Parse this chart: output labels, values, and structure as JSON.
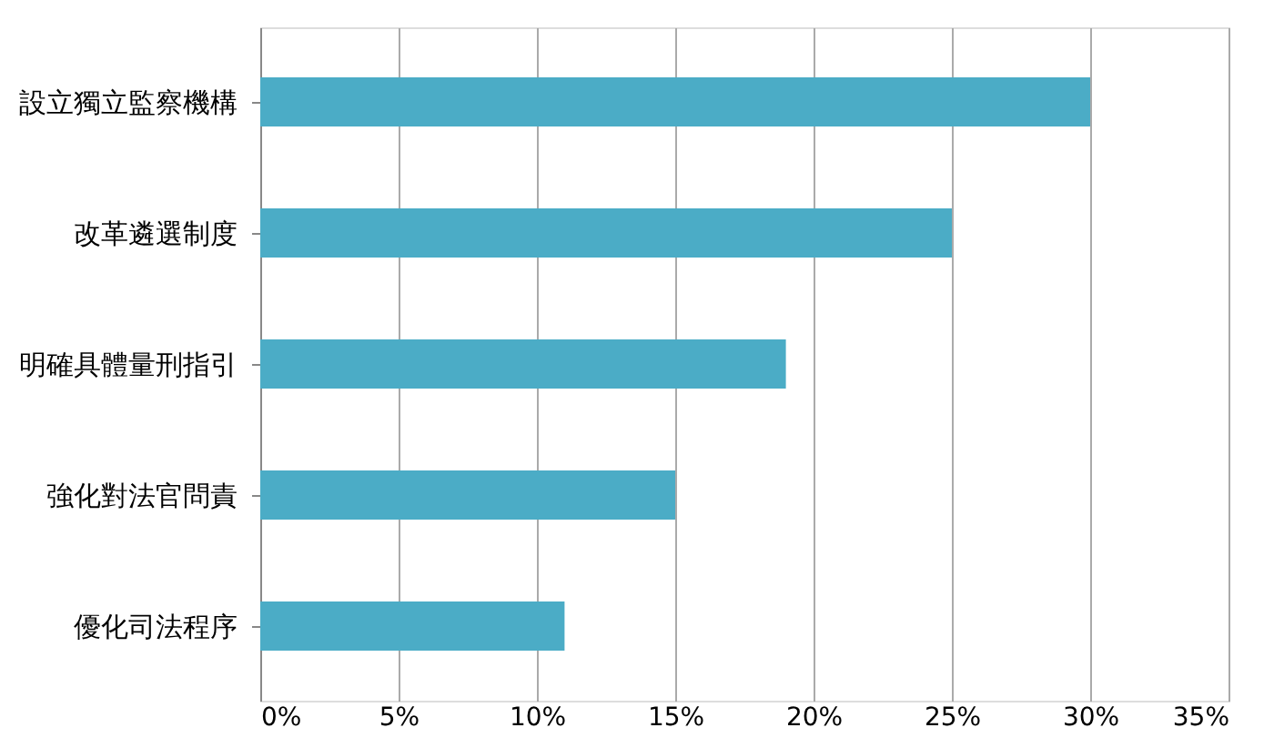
{
  "chart_data": {
    "type": "bar",
    "orientation": "horizontal",
    "categories": [
      "設立獨立監察機構",
      "改革遴選制度",
      "明確具體量刑指引",
      "強化對法官問責",
      "優化司法程序"
    ],
    "values": [
      30,
      25,
      19,
      15,
      11
    ],
    "color": "#4bacc6",
    "xlim": [
      0,
      35
    ],
    "xticks": [
      {
        "value": 0,
        "label": "0%"
      },
      {
        "value": 5,
        "label": "5%"
      },
      {
        "value": 10,
        "label": "10%"
      },
      {
        "value": 15,
        "label": "15%"
      },
      {
        "value": 20,
        "label": "20%"
      },
      {
        "value": 25,
        "label": "25%"
      },
      {
        "value": 30,
        "label": "30%"
      },
      {
        "value": 35,
        "label": "35%"
      }
    ],
    "grid": "x"
  }
}
